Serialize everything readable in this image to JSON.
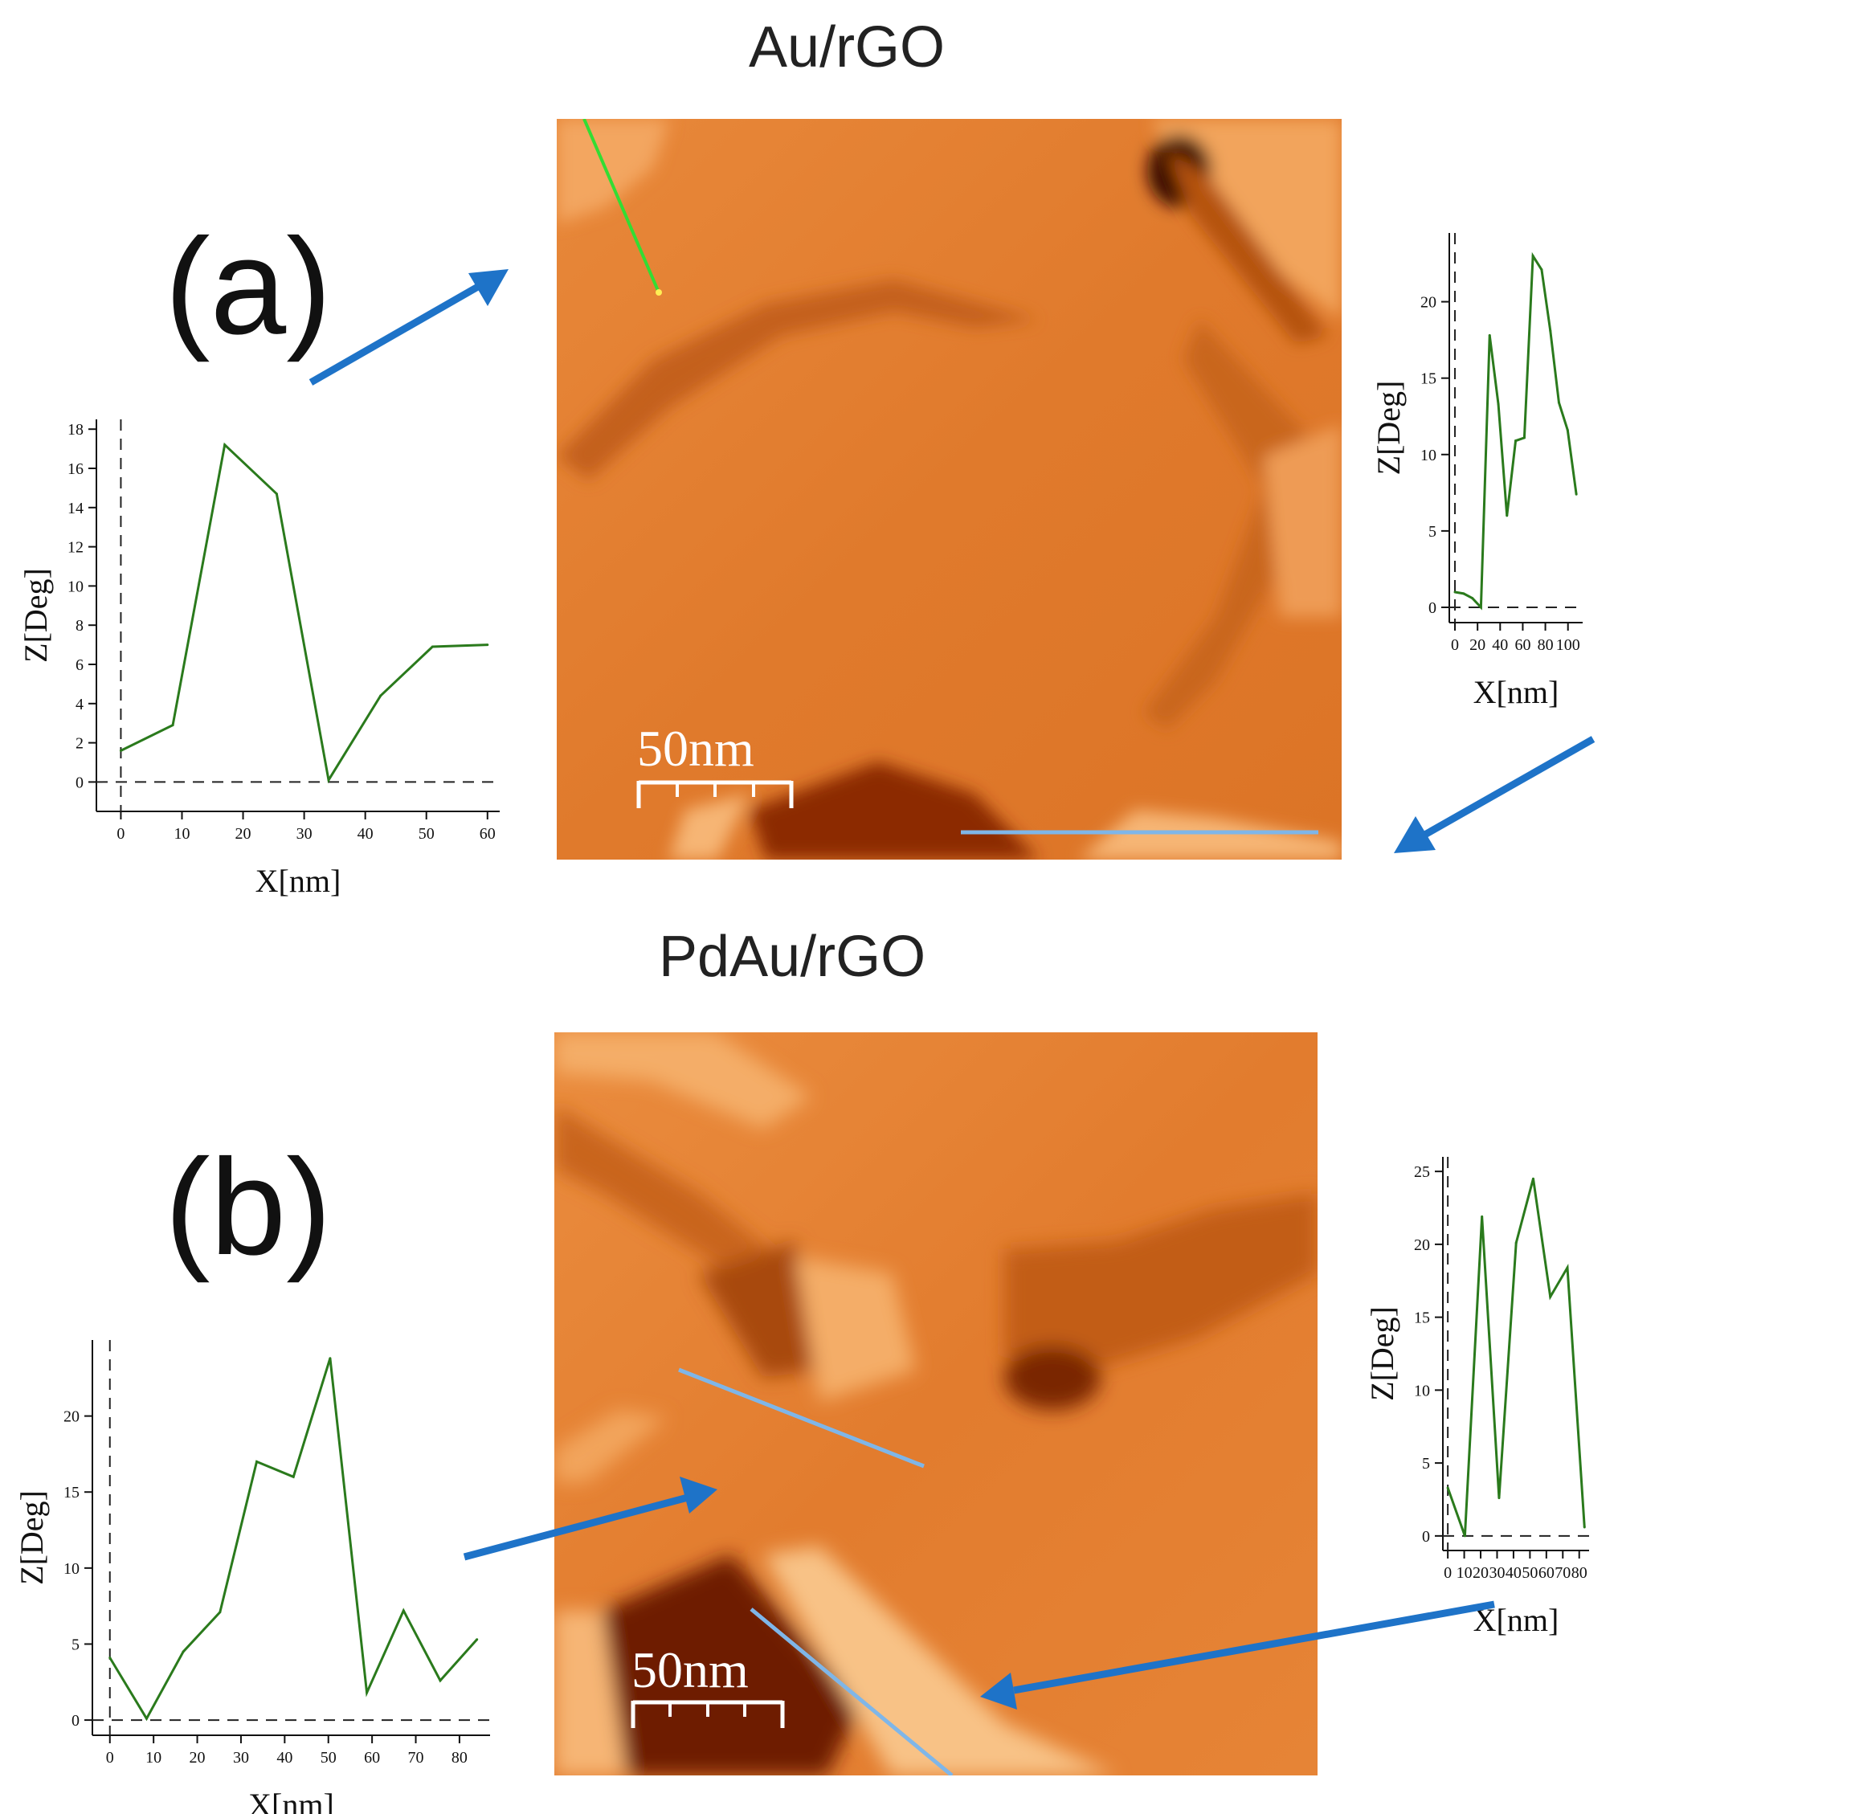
{
  "titles": {
    "top": "Au/rGO",
    "bottom": "PdAu/rGO"
  },
  "panels": {
    "a": "(a)",
    "b": "(b)"
  },
  "scalebar": {
    "a": "50nm",
    "b": "50nm"
  },
  "colors": {
    "line": "#2a7a1c",
    "arrow": "#1e73c8",
    "scan_line_blue": "#7fb6e8",
    "scan_line_green": "#33dd33",
    "afm_base": "#e07a2c"
  },
  "chart_data": [
    {
      "id": "a-left",
      "type": "line",
      "xlabel": "X[nm]",
      "ylabel": "Z[Deg]",
      "xlim": [
        -4,
        62
      ],
      "ylim": [
        -1.5,
        18.5
      ],
      "xticks": [
        0,
        10,
        20,
        30,
        40,
        50,
        60
      ],
      "yticks": [
        0,
        2,
        4,
        6,
        8,
        10,
        12,
        14,
        16,
        18
      ],
      "x": [
        0,
        8.5,
        17,
        25.5,
        34,
        42.5,
        51,
        60
      ],
      "y": [
        1.6,
        2.9,
        17.2,
        14.7,
        0.1,
        4.4,
        6.9,
        7.0
      ]
    },
    {
      "id": "a-right",
      "type": "line",
      "xlabel": "X[nm]",
      "ylabel": "Z[Deg]",
      "xlim": [
        -5,
        113
      ],
      "ylim": [
        -1,
        24.5
      ],
      "xticks": [
        0,
        20,
        40,
        60,
        80,
        100
      ],
      "yticks": [
        0,
        5,
        10,
        15,
        20
      ],
      "x": [
        0,
        7.7,
        15.4,
        23,
        30.7,
        38.4,
        46,
        53.7,
        61.4,
        69,
        76.7,
        84.4,
        92,
        99.7,
        107.4
      ],
      "y": [
        1.0,
        0.9,
        0.6,
        0.0,
        17.8,
        13.3,
        6.0,
        10.9,
        11.1,
        23.0,
        22.1,
        18.1,
        13.4,
        11.6,
        7.4
      ]
    },
    {
      "id": "b-left",
      "type": "line",
      "xlabel": "X[nm]",
      "ylabel": "Z[Deg]",
      "xlim": [
        -4,
        87
      ],
      "ylim": [
        -1,
        25
      ],
      "xticks": [
        0,
        10,
        20,
        30,
        40,
        50,
        60,
        70,
        80
      ],
      "yticks": [
        0,
        5,
        10,
        15,
        20
      ],
      "x": [
        0,
        8.4,
        16.8,
        25.2,
        33.6,
        42,
        50.4,
        58.8,
        67.2,
        75.6,
        84
      ],
      "y": [
        4.1,
        0.1,
        4.5,
        7.1,
        17.0,
        16.0,
        23.8,
        1.8,
        7.2,
        2.6,
        5.3
      ]
    },
    {
      "id": "b-right",
      "type": "line",
      "xlabel": "X[nm]",
      "ylabel": "Z[Deg]",
      "xlim": [
        -3,
        86
      ],
      "ylim": [
        -1,
        26
      ],
      "xticks": [
        0,
        10,
        20,
        30,
        40,
        50,
        60,
        70,
        80
      ],
      "yticks": [
        0,
        5,
        10,
        15,
        20,
        25
      ],
      "x": [
        0,
        10.4,
        20.8,
        31.2,
        41.6,
        52,
        62.4,
        72.8,
        83.2
      ],
      "y": [
        3.3,
        0.0,
        21.9,
        2.6,
        20.1,
        24.5,
        16.4,
        18.4,
        0.6
      ]
    }
  ]
}
